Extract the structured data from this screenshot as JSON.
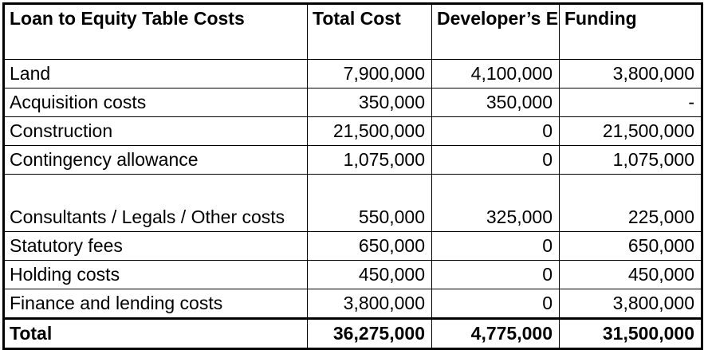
{
  "table": {
    "headers": {
      "col1": "Loan to Equity Table Costs",
      "col2": "Total Cost",
      "col3": "Developer’s Equity",
      "col4": "Funding"
    },
    "rows": [
      {
        "label": "Land",
        "total_cost": "7,900,000",
        "equity": "4,100,000",
        "funding": "3,800,000"
      },
      {
        "label": "Acquisition costs",
        "total_cost": "350,000",
        "equity": "350,000",
        "funding": "-"
      },
      {
        "label": "Construction",
        "total_cost": "21,500,000",
        "equity": "0",
        "funding": "21,500,000"
      },
      {
        "label": "Contingency allowance",
        "total_cost": "1,075,000",
        "equity": "0",
        "funding": "1,075,000"
      },
      {
        "label": "Consultants / Legals / Other costs",
        "total_cost": "550,000",
        "equity": "325,000",
        "funding": "225,000"
      },
      {
        "label": "Statutory fees",
        "total_cost": "650,000",
        "equity": "0",
        "funding": "650,000"
      },
      {
        "label": "Holding costs",
        "total_cost": "450,000",
        "equity": "0",
        "funding": "450,000"
      },
      {
        "label": "Finance and lending costs",
        "total_cost": "3,800,000",
        "equity": "0",
        "funding": "3,800,000"
      }
    ],
    "total": {
      "label": "Total",
      "total_cost": "36,275,000",
      "equity": "4,775,000",
      "funding": "31,500,000"
    }
  }
}
